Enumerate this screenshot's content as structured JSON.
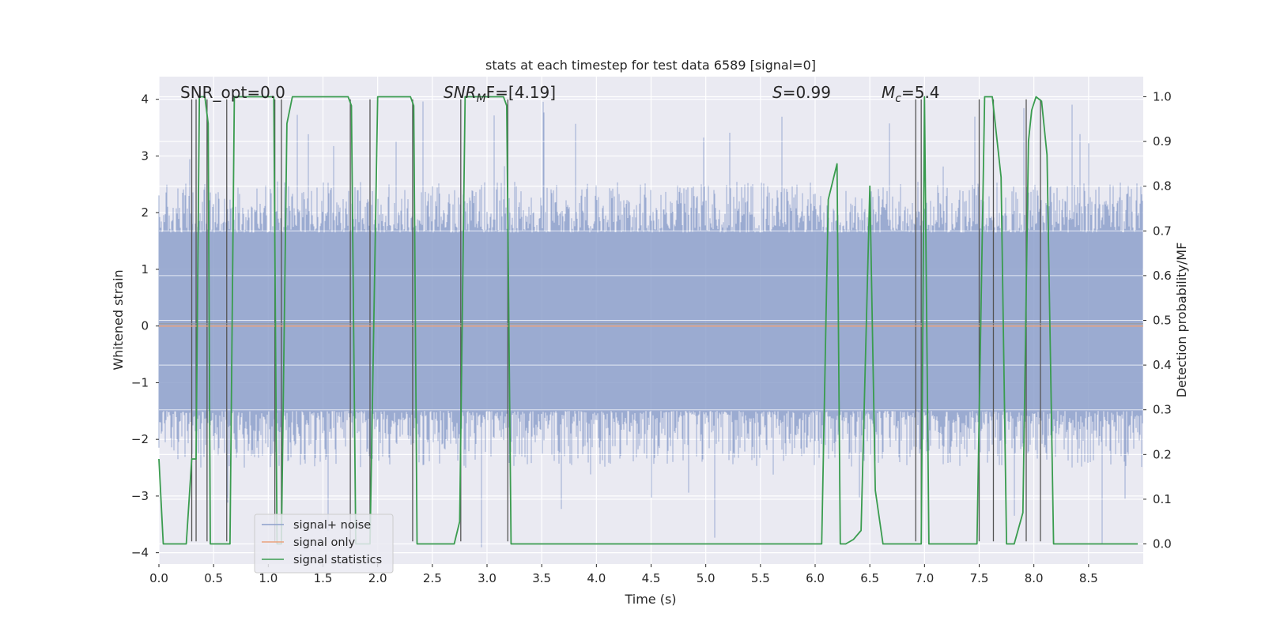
{
  "chart_data": {
    "type": "line",
    "title": "stats at each timestep for test data 6589 [signal=0]",
    "xlabel": "Time (s)",
    "ylabel_left": "Whitened strain",
    "ylabel_right": "Detection probability/MF",
    "xlim": [
      0.0,
      9.0
    ],
    "ylim_left": [
      -4.2,
      4.4
    ],
    "ylim_right": [
      -0.045,
      1.045
    ],
    "x_ticks": [
      "0.0",
      "0.5",
      "1.0",
      "1.5",
      "2.0",
      "2.5",
      "3.0",
      "3.5",
      "4.0",
      "4.5",
      "5.0",
      "5.5",
      "6.0",
      "6.5",
      "7.0",
      "7.5",
      "8.0",
      "8.5"
    ],
    "y_ticks_left": [
      "4",
      "3",
      "2",
      "1",
      "0",
      "−1",
      "−2",
      "−3",
      "−4"
    ],
    "y_ticks_right": [
      "1.0",
      "0.9",
      "0.8",
      "0.7",
      "0.6",
      "0.5",
      "0.4",
      "0.3",
      "0.2",
      "0.1",
      "0.0"
    ],
    "grid": true,
    "annotations": {
      "snr_opt": "SNR_opt=0.0",
      "snr_mf_sym": "SNR",
      "snr_mf_sub": "M",
      "snr_mf_rest": "F=[4.19]",
      "s_sym": "S",
      "s_rest": "=0.99",
      "mc_sym": "M",
      "mc_sub": "c",
      "mc_rest": "=5.4"
    },
    "legend": {
      "placement": "lower-left",
      "items": [
        {
          "label": "signal+ noise",
          "color": "#8da0cb"
        },
        {
          "label": "signal only",
          "color": "#e9a27c"
        },
        {
          "label": "signal statistics",
          "color": "#3a9c4f"
        }
      ]
    },
    "series": [
      {
        "name": "signal+ noise",
        "color": "#8da0cb",
        "kind": "noise-band",
        "typical_range": [
          -1.5,
          1.65
        ]
      },
      {
        "name": "signal only",
        "color": "#e9a27c",
        "x": [
          0.0,
          9.0
        ],
        "y": [
          0.0,
          0.0
        ]
      },
      {
        "name": "signal statistics",
        "color": "#3a9c4f",
        "x": [
          0.0,
          0.04,
          0.1,
          0.25,
          0.3,
          0.34,
          0.37,
          0.42,
          0.45,
          0.47,
          0.5,
          0.53,
          0.62,
          0.65,
          0.69,
          0.72,
          1.05,
          1.08,
          1.12,
          1.17,
          1.22,
          1.25,
          1.73,
          1.76,
          1.8,
          1.83,
          1.9,
          1.93,
          2.0,
          2.3,
          2.33,
          2.36,
          2.45,
          2.7,
          2.75,
          2.8,
          3.15,
          3.18,
          3.22,
          3.26,
          6.06,
          6.12,
          6.2,
          6.23,
          6.28,
          6.35,
          6.42,
          6.5,
          6.55,
          6.62,
          6.92,
          6.97,
          7.0,
          7.04,
          7.12,
          7.48,
          7.55,
          7.62,
          7.7,
          7.75,
          7.82,
          7.9,
          7.95,
          7.98,
          8.02,
          8.07,
          8.12,
          8.18,
          8.95
        ],
        "y": [
          0.19,
          0.0,
          0.0,
          0.0,
          0.19,
          0.19,
          1.0,
          1.0,
          0.94,
          0.0,
          0.0,
          0.0,
          0.0,
          0.0,
          1.0,
          1.0,
          1.0,
          0.0,
          0.0,
          0.94,
          1.0,
          1.0,
          1.0,
          0.98,
          0.0,
          0.0,
          0.0,
          0.0,
          1.0,
          1.0,
          0.98,
          0.0,
          0.0,
          0.0,
          0.05,
          1.0,
          1.0,
          0.98,
          0.0,
          0.0,
          0.0,
          0.77,
          0.85,
          0.0,
          0.0,
          0.01,
          0.03,
          0.8,
          0.12,
          0.0,
          0.0,
          0.0,
          1.0,
          0.0,
          0.0,
          0.0,
          1.0,
          1.0,
          0.82,
          0.0,
          0.0,
          0.07,
          0.9,
          0.97,
          1.0,
          0.99,
          0.87,
          0.0,
          0.0
        ]
      }
    ],
    "vertical_markers_x": [
      0.3,
      0.34,
      0.44,
      0.62,
      1.06,
      1.12,
      1.75,
      1.93,
      2.32,
      2.76,
      3.19,
      6.92,
      6.97,
      7.5,
      7.63,
      7.93,
      8.06
    ]
  }
}
